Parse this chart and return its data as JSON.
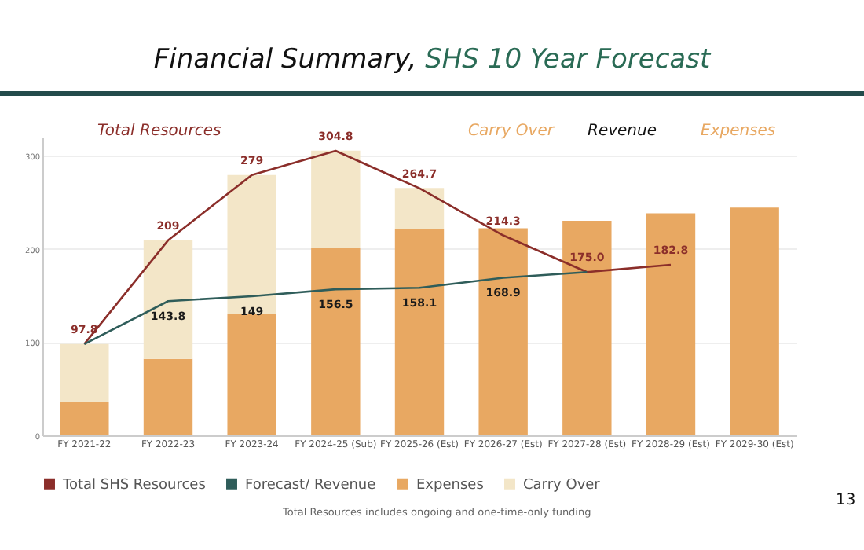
{
  "chart_data": {
    "type": "bar",
    "title": "Financial Summary, SHS 10 Year Forecast",
    "annotations": [
      "Total Resources",
      "Carry Over",
      "Revenue",
      "Expenses",
      "Total Resources includes ongoing and one-time-only funding",
      "13"
    ],
    "categories": [
      "FY 2021-22",
      "FY 2022-23",
      "FY 2023-24",
      "FY 2024-25 (Sub)",
      "FY 2025-26 (Est)",
      "FY 2026-27 (Est)",
      "FY 2027-28 (Est)",
      "FY 2028-29 (Est)",
      "FY 2029-30 (Est)"
    ],
    "stacked": true,
    "ylim": [
      0,
      320
    ],
    "yticks": [
      0,
      100,
      200,
      300
    ],
    "grid": "y",
    "legend": "bottom",
    "marker": "none",
    "series": [
      {
        "name": "Total SHS Resources",
        "type": "line",
        "color": "#8b2e2a",
        "values": [
          97.8,
          209,
          279,
          304.8,
          264.7,
          214.3,
          175.0,
          182.8,
          null
        ],
        "value_labels": [
          "97.8",
          "209",
          "279",
          "304.8",
          "264.7",
          "214.3",
          "175.0",
          "182.8",
          null
        ]
      },
      {
        "name": "Forecast/ Revenue",
        "type": "line",
        "color": "#2f5d5a",
        "values": [
          97.8,
          143.8,
          149,
          156.5,
          158.1,
          168.9,
          175.0,
          null,
          null
        ],
        "value_labels": [
          null,
          "143.8",
          "149",
          "156.5",
          "158.1",
          "168.9",
          null,
          null,
          null
        ]
      },
      {
        "name": "Expenses",
        "color": "#e8a862",
        "values": [
          36,
          82,
          130,
          201,
          221,
          222,
          230,
          238,
          244
        ]
      },
      {
        "name": "Carry Over",
        "color": "#f3e6c8",
        "values": [
          62,
          127,
          149,
          104,
          44,
          null,
          null,
          null,
          null
        ]
      }
    ]
  }
}
